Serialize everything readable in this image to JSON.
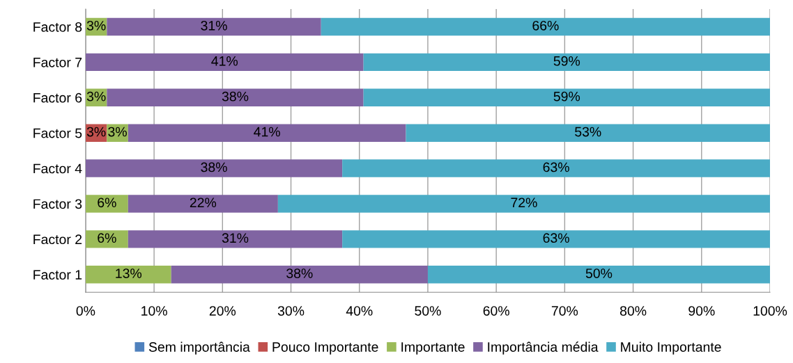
{
  "chart_data": {
    "type": "bar",
    "orientation": "horizontal",
    "stacked": true,
    "categories": [
      "Factor 8",
      "Factor 7",
      "Factor 6",
      "Factor 5",
      "Factor 4",
      "Factor 3",
      "Factor 2",
      "Factor 1"
    ],
    "series": [
      {
        "name": "Sem importância",
        "color": "#4f81bd",
        "values": [
          0,
          0,
          0,
          0,
          0,
          0,
          0,
          0
        ],
        "value_labels": [
          null,
          null,
          null,
          null,
          null,
          null,
          null,
          null
        ]
      },
      {
        "name": "Pouco Importante",
        "color": "#c0504d",
        "values": [
          0,
          0,
          0,
          3.1,
          0,
          0,
          0,
          0
        ],
        "value_labels": [
          null,
          null,
          null,
          "3%",
          null,
          null,
          null,
          null
        ]
      },
      {
        "name": "Importante",
        "color": "#9bbb59",
        "values": [
          3.1,
          0,
          3.1,
          3.1,
          0,
          6.2,
          6.2,
          12.5
        ],
        "value_labels": [
          "3%",
          null,
          "3%",
          "3%",
          null,
          "6%",
          "6%",
          "13%"
        ]
      },
      {
        "name": "Importância média",
        "color": "#8064a2",
        "values": [
          31.3,
          40.6,
          37.5,
          40.6,
          37.5,
          21.9,
          31.3,
          37.5
        ],
        "value_labels": [
          "31%",
          "41%",
          "38%",
          "41%",
          "38%",
          "22%",
          "31%",
          "38%"
        ]
      },
      {
        "name": "Muito Importante",
        "color": "#4bacc6",
        "values": [
          65.6,
          59.4,
          59.4,
          53.2,
          62.5,
          71.9,
          62.5,
          50.0
        ],
        "value_labels": [
          "66%",
          "59%",
          "59%",
          "53%",
          "63%",
          "72%",
          "63%",
          "50%"
        ]
      }
    ],
    "xlim": [
      0,
      100
    ],
    "xticks": [
      {
        "value": 0,
        "label": "0%"
      },
      {
        "value": 10,
        "label": "10%"
      },
      {
        "value": 20,
        "label": "20%"
      },
      {
        "value": 30,
        "label": "30%"
      },
      {
        "value": 40,
        "label": "40%"
      },
      {
        "value": 50,
        "label": "50%"
      },
      {
        "value": 60,
        "label": "60%"
      },
      {
        "value": 70,
        "label": "70%"
      },
      {
        "value": 80,
        "label": "80%"
      },
      {
        "value": 90,
        "label": "90%"
      },
      {
        "value": 100,
        "label": "100%"
      }
    ],
    "grid": "x",
    "legend": "bottom"
  }
}
